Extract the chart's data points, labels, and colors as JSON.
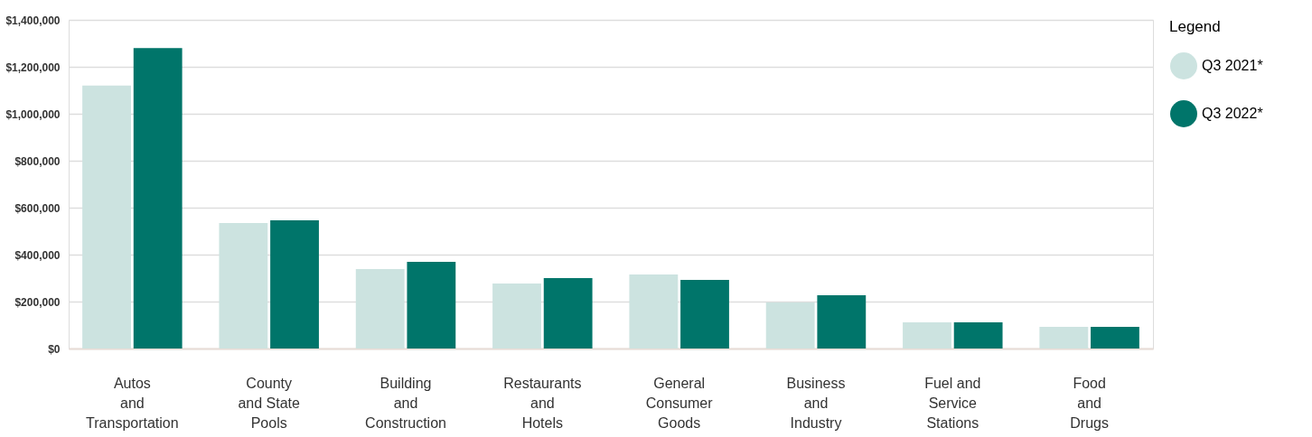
{
  "chart_data": {
    "type": "bar",
    "categories": [
      "Autos\nand\nTransportation",
      "County\nand State\nPools",
      "Building\nand\nConstruction",
      "Restaurants\nand\nHotels",
      "General\nConsumer\nGoods",
      "Business\nand\nIndustry",
      "Fuel and\nService\nStations",
      "Food\nand\nDrugs"
    ],
    "series": [
      {
        "name": "Q3 2021*",
        "color": "#cce3e0",
        "values": [
          1120000,
          535000,
          338000,
          277000,
          315000,
          196000,
          112000,
          92000
        ]
      },
      {
        "name": "Q3 2022*",
        "color": "#00756a",
        "values": [
          1280000,
          546000,
          369000,
          300000,
          292000,
          227000,
          112000,
          92000
        ]
      }
    ],
    "legend_title": "Legend",
    "ylim": [
      0,
      1400000
    ],
    "yticks": [
      {
        "value": 0,
        "label": "$0"
      },
      {
        "value": 200000,
        "label": "$200,000"
      },
      {
        "value": 400000,
        "label": "$400,000"
      },
      {
        "value": 600000,
        "label": "$600,000"
      },
      {
        "value": 800000,
        "label": "$800,000"
      },
      {
        "value": 1000000,
        "label": "$1,000,000"
      },
      {
        "value": 1200000,
        "label": "$1,200,000"
      },
      {
        "value": 1400000,
        "label": "$1,400,000"
      }
    ],
    "grid": "y",
    "legend": "right"
  }
}
